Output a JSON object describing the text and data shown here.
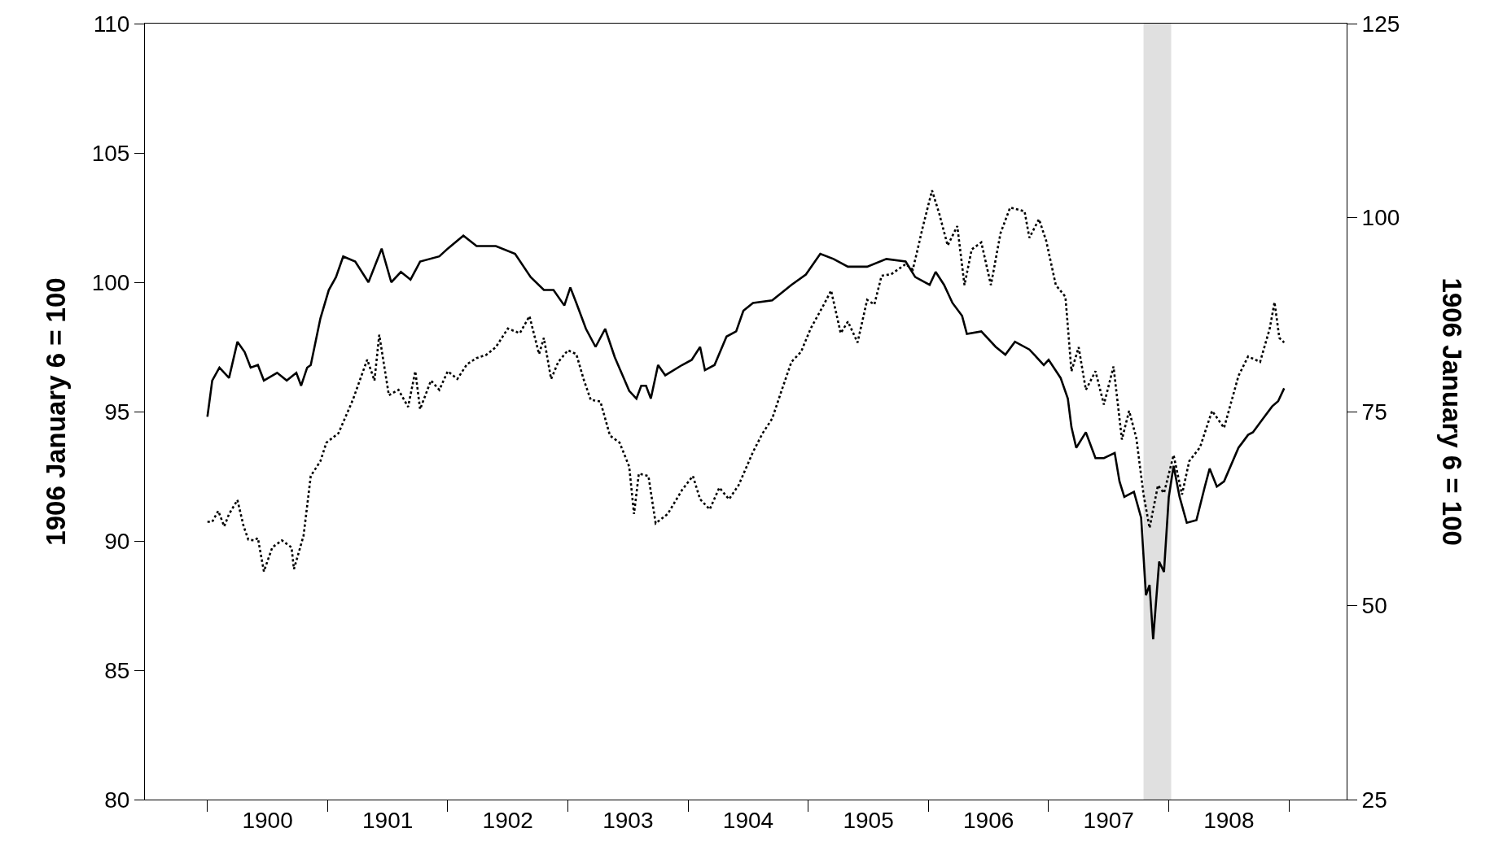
{
  "chart_data": {
    "type": "line",
    "ylabel": "1906 January 6 = 100",
    "y2label": "1906 January 6 = 100",
    "xlim": [
      1899.48,
      1909.48
    ],
    "xticks": [
      {
        "value": 1900,
        "label": null
      },
      {
        "value": 1900.5,
        "label": "1900"
      },
      {
        "value": 1901,
        "label": null
      },
      {
        "value": 1901.5,
        "label": "1901"
      },
      {
        "value": 1902,
        "label": null
      },
      {
        "value": 1902.5,
        "label": "1902"
      },
      {
        "value": 1903,
        "label": null
      },
      {
        "value": 1903.5,
        "label": "1903"
      },
      {
        "value": 1904,
        "label": null
      },
      {
        "value": 1904.5,
        "label": "1904"
      },
      {
        "value": 1905,
        "label": null
      },
      {
        "value": 1905.5,
        "label": "1905"
      },
      {
        "value": 1906,
        "label": null
      },
      {
        "value": 1906.5,
        "label": "1906"
      },
      {
        "value": 1907,
        "label": null
      },
      {
        "value": 1907.5,
        "label": "1907"
      },
      {
        "value": 1908,
        "label": null
      },
      {
        "value": 1908.5,
        "label": "1908"
      },
      {
        "value": 1909,
        "label": null
      }
    ],
    "ylim": [
      80,
      110
    ],
    "yticks": [
      80,
      85,
      90,
      95,
      100,
      105,
      110
    ],
    "y2lim": [
      25,
      125
    ],
    "y2ticks": [
      25,
      50,
      75,
      100,
      125
    ],
    "marker": "none",
    "bands": [
      {
        "axis": "x",
        "from": 1907.79,
        "to": 1908.02,
        "color": "#e0e0e0"
      }
    ],
    "series": [
      {
        "color": "#000000",
        "line_style": "solid",
        "x": [
          1900.0,
          1900.04,
          1900.1,
          1900.18,
          1900.25,
          1900.31,
          1900.36,
          1900.42,
          1900.47,
          1900.58,
          1900.66,
          1900.74,
          1900.78,
          1900.83,
          1900.86,
          1900.94,
          1901.01,
          1901.07,
          1901.13,
          1901.23,
          1901.34,
          1901.45,
          1901.53,
          1901.61,
          1901.69,
          1901.77,
          1901.93,
          1902.0,
          1902.13,
          1902.24,
          1902.4,
          1902.56,
          1902.69,
          1902.8,
          1902.88,
          1902.97,
          1903.02,
          1903.07,
          1903.15,
          1903.23,
          1903.31,
          1903.39,
          1903.51,
          1903.57,
          1903.61,
          1903.65,
          1903.69,
          1903.75,
          1903.81,
          1903.95,
          1904.03,
          1904.1,
          1904.14,
          1904.22,
          1904.32,
          1904.4,
          1904.46,
          1904.54,
          1904.7,
          1904.86,
          1904.98,
          1905.1,
          1905.21,
          1905.33,
          1905.49,
          1905.65,
          1905.81,
          1905.89,
          1906.01,
          1906.06,
          1906.13,
          1906.2,
          1906.28,
          1906.32,
          1906.44,
          1906.56,
          1906.64,
          1906.72,
          1906.84,
          1906.96,
          1907.0,
          1907.1,
          1907.16,
          1907.19,
          1907.23,
          1907.31,
          1907.39,
          1907.46,
          1907.55,
          1907.59,
          1907.63,
          1907.71,
          1907.77,
          1907.81,
          1907.84,
          1907.87,
          1907.92,
          1907.96,
          1908.0,
          1908.04,
          1908.09,
          1908.15,
          1908.23,
          1908.3,
          1908.34,
          1908.4,
          1908.46,
          1908.58,
          1908.66,
          1908.7,
          1908.78,
          1908.86,
          1908.91,
          1908.96
        ],
        "values": [
          94.8,
          96.2,
          96.7,
          96.3,
          97.7,
          97.3,
          96.7,
          96.8,
          96.2,
          96.5,
          96.2,
          96.5,
          96.0,
          96.7,
          96.8,
          98.6,
          99.7,
          100.2,
          101.0,
          100.8,
          100.0,
          101.3,
          100.0,
          100.4,
          100.1,
          100.8,
          101.0,
          101.3,
          101.8,
          101.4,
          101.4,
          101.1,
          100.2,
          99.7,
          99.7,
          99.1,
          99.8,
          99.2,
          98.2,
          97.5,
          98.2,
          97.1,
          95.8,
          95.5,
          96.0,
          96.0,
          95.5,
          96.8,
          96.4,
          96.8,
          97.0,
          97.5,
          96.6,
          96.8,
          97.9,
          98.1,
          98.9,
          99.2,
          99.3,
          99.9,
          100.3,
          101.1,
          100.9,
          100.6,
          100.6,
          100.9,
          100.8,
          100.2,
          99.9,
          100.4,
          99.9,
          99.2,
          98.7,
          98.0,
          98.1,
          97.5,
          97.2,
          97.7,
          97.4,
          96.8,
          97.0,
          96.3,
          95.5,
          94.4,
          93.6,
          94.2,
          93.2,
          93.2,
          93.4,
          92.3,
          91.7,
          91.9,
          90.9,
          87.9,
          88.3,
          86.2,
          89.2,
          88.8,
          91.7,
          92.9,
          91.7,
          90.7,
          90.8,
          92.1,
          92.8,
          92.1,
          92.3,
          93.6,
          94.1,
          94.2,
          94.7,
          95.2,
          95.4,
          95.9
        ]
      },
      {
        "color": "#000000",
        "line_style": "dotted",
        "axis": "y2",
        "x": [
          1900.0,
          1900.04,
          1900.09,
          1900.14,
          1900.18,
          1900.25,
          1900.3,
          1900.34,
          1900.39,
          1900.42,
          1900.47,
          1900.54,
          1900.62,
          1900.7,
          1900.72,
          1900.8,
          1900.86,
          1900.94,
          1900.99,
          1901.09,
          1901.21,
          1901.33,
          1901.39,
          1901.43,
          1901.51,
          1901.59,
          1901.67,
          1901.73,
          1901.77,
          1901.86,
          1901.93,
          1902.0,
          1902.08,
          1902.16,
          1902.24,
          1902.32,
          1902.4,
          1902.5,
          1902.6,
          1902.68,
          1902.76,
          1902.8,
          1902.86,
          1902.92,
          1903.0,
          1903.07,
          1903.13,
          1903.19,
          1903.27,
          1903.35,
          1903.43,
          1903.51,
          1903.55,
          1903.59,
          1903.67,
          1903.73,
          1903.83,
          1903.95,
          1904.04,
          1904.1,
          1904.18,
          1904.26,
          1904.34,
          1904.42,
          1904.54,
          1904.62,
          1904.7,
          1904.78,
          1904.86,
          1904.94,
          1905.02,
          1905.13,
          1905.19,
          1905.27,
          1905.33,
          1905.41,
          1905.49,
          1905.55,
          1905.61,
          1905.69,
          1905.81,
          1905.87,
          1905.91,
          1905.95,
          1906.03,
          1906.09,
          1906.16,
          1906.24,
          1906.3,
          1906.36,
          1906.44,
          1906.52,
          1906.6,
          1906.68,
          1906.8,
          1906.84,
          1906.92,
          1906.98,
          1907.06,
          1907.14,
          1907.19,
          1907.25,
          1907.31,
          1907.39,
          1907.46,
          1907.54,
          1907.61,
          1907.67,
          1907.73,
          1907.79,
          1907.84,
          1907.91,
          1907.96,
          1908.04,
          1908.11,
          1908.17,
          1908.26,
          1908.36,
          1908.46,
          1908.58,
          1908.66,
          1908.76,
          1908.84,
          1908.88,
          1908.92,
          1908.96
        ],
        "values": [
          60.8,
          60.8,
          62.2,
          60.2,
          61.8,
          63.6,
          60.3,
          58.5,
          58.4,
          58.7,
          54.4,
          57.5,
          58.4,
          57.5,
          54.7,
          59.0,
          66.7,
          68.6,
          71.0,
          72.2,
          76.5,
          81.7,
          79.0,
          84.9,
          77.1,
          77.8,
          75.6,
          80.2,
          75.3,
          79.0,
          77.8,
          80.2,
          79.2,
          81.1,
          81.9,
          82.3,
          83.3,
          85.7,
          85.1,
          87.3,
          82.4,
          84.5,
          79.2,
          81.4,
          82.9,
          82.4,
          79.2,
          76.5,
          76.3,
          71.9,
          71.0,
          67.9,
          61.8,
          67.0,
          66.7,
          60.6,
          61.8,
          64.9,
          66.7,
          63.7,
          62.4,
          65.2,
          63.7,
          65.5,
          69.8,
          72.2,
          74.1,
          77.8,
          81.4,
          82.7,
          85.7,
          88.8,
          90.6,
          85.1,
          86.6,
          83.9,
          89.4,
          88.8,
          92.5,
          92.7,
          94.0,
          93.3,
          95.9,
          98.6,
          103.5,
          100.5,
          96.4,
          98.9,
          91.3,
          95.9,
          96.8,
          91.3,
          98.0,
          101.3,
          100.8,
          97.4,
          99.8,
          97.0,
          91.3,
          89.8,
          80.2,
          83.3,
          77.8,
          80.2,
          75.9,
          80.8,
          71.4,
          75.1,
          71.6,
          64.3,
          60.0,
          65.5,
          64.5,
          69.4,
          64.3,
          68.6,
          70.4,
          75.1,
          72.9,
          79.6,
          82.1,
          81.4,
          85.7,
          89.1,
          84.5,
          83.9
        ]
      }
    ]
  }
}
